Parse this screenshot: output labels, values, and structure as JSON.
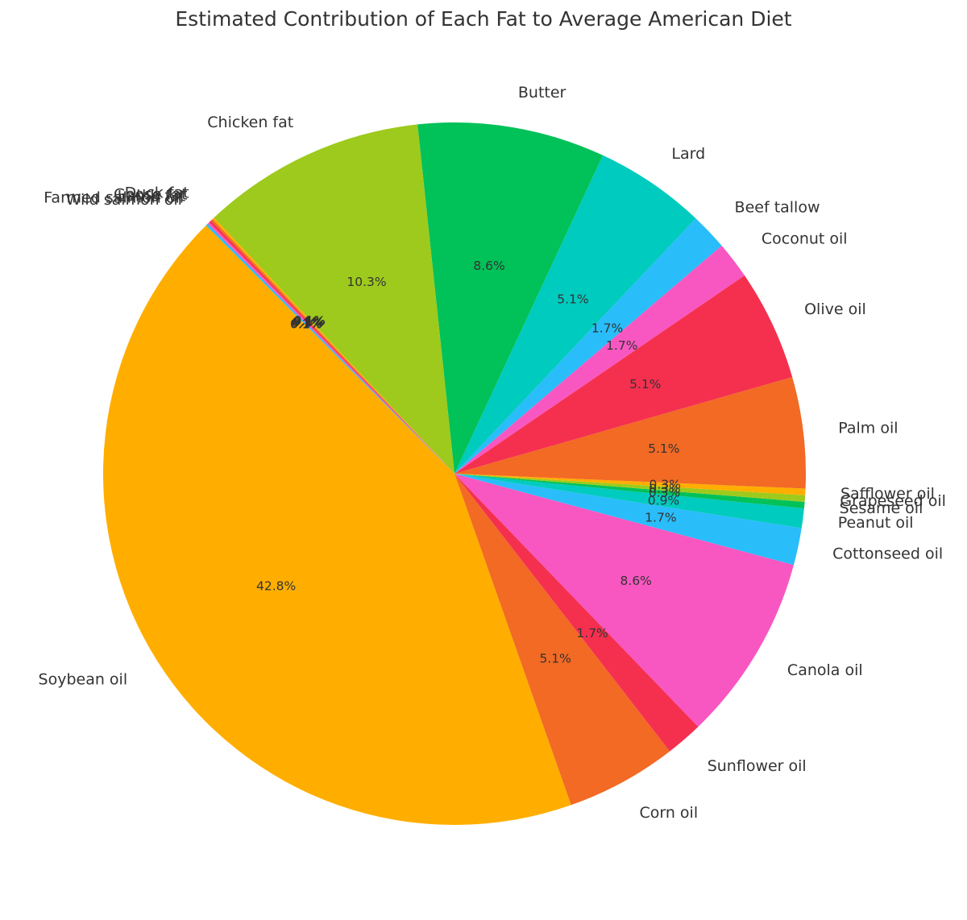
{
  "chart_data": {
    "type": "pie",
    "title": "Estimated Contribution of Each Fat to Average American Diet",
    "start_angle_deg": 135,
    "direction": "counterclockwise",
    "slices": [
      {
        "label": "Soybean oil",
        "value": 42.8,
        "pct_label": "42.8%",
        "color": "#FFAE00"
      },
      {
        "label": "Corn oil",
        "value": 5.1,
        "pct_label": "5.1%",
        "color": "#F26A24"
      },
      {
        "label": "Sunflower oil",
        "value": 1.7,
        "pct_label": "1.7%",
        "color": "#F5304F"
      },
      {
        "label": "Canola oil",
        "value": 8.6,
        "pct_label": "8.6%",
        "color": "#F857C1"
      },
      {
        "label": "Cottonseed oil",
        "value": 1.7,
        "pct_label": "1.7%",
        "color": "#29BDFA"
      },
      {
        "label": "Peanut oil",
        "value": 0.9,
        "pct_label": "0.9%",
        "color": "#00CBBF"
      },
      {
        "label": "Sesame oil",
        "value": 0.3,
        "pct_label": "0.3%",
        "color": "#01C159"
      },
      {
        "label": "Grapeseed oil",
        "value": 0.3,
        "pct_label": "0.3%",
        "color": "#9DCA1C"
      },
      {
        "label": "Safflower oil",
        "value": 0.3,
        "pct_label": "0.3%",
        "color": "#FFAE00"
      },
      {
        "label": "Palm oil",
        "value": 5.1,
        "pct_label": "5.1%",
        "color": "#F26A24"
      },
      {
        "label": "Olive oil",
        "value": 5.1,
        "pct_label": "5.1%",
        "color": "#F5304F"
      },
      {
        "label": "Coconut oil",
        "value": 1.7,
        "pct_label": "1.7%",
        "color": "#F857C1"
      },
      {
        "label": "Beef tallow",
        "value": 1.7,
        "pct_label": "1.7%",
        "color": "#29BDFA"
      },
      {
        "label": "Lard",
        "value": 5.1,
        "pct_label": "5.1%",
        "color": "#00CBBF"
      },
      {
        "label": "Butter",
        "value": 8.6,
        "pct_label": "8.6%",
        "color": "#01C159"
      },
      {
        "label": "Chicken fat",
        "value": 10.3,
        "pct_label": "10.3%",
        "color": "#9DCA1C"
      },
      {
        "label": "Duck fat",
        "value": 0.1,
        "pct_label": "0.1%",
        "color": "#FFAE00"
      },
      {
        "label": "Goose fat",
        "value": 0.1,
        "pct_label": "0.1%",
        "color": "#F26A24"
      },
      {
        "label": "Lamb fat",
        "value": 0.1,
        "pct_label": "0.1%",
        "color": "#F5304F"
      },
      {
        "label": "Farmed salmon oil",
        "value": 0.1,
        "pct_label": "0.1%",
        "color": "#F857C1"
      },
      {
        "label": "Wild salmon oil",
        "value": 0.1,
        "pct_label": "0.1%",
        "color": "#29BDFA"
      }
    ]
  }
}
